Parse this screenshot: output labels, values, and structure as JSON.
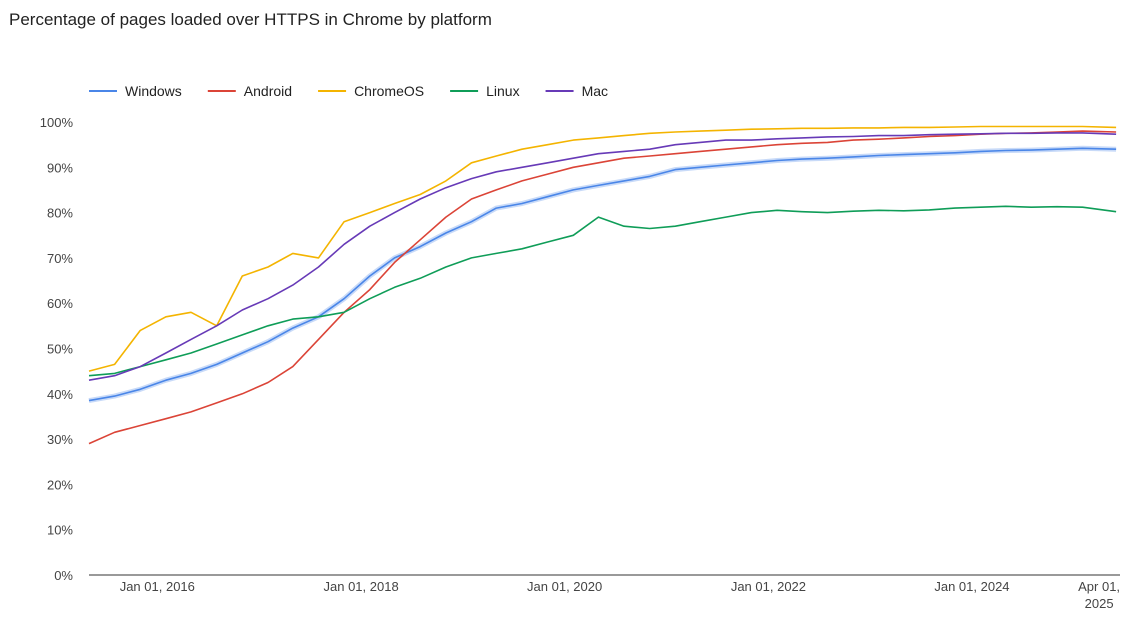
{
  "chart_data": {
    "type": "line",
    "title": "Percentage of pages loaded over HTTPS in Chrome by platform",
    "xlabel": "",
    "ylabel": "",
    "x_ticks": [
      {
        "date": "2016-01-01",
        "label": "Jan 01, 2016"
      },
      {
        "date": "2018-01-01",
        "label": "Jan 01, 2018"
      },
      {
        "date": "2020-01-01",
        "label": "Jan 01, 2020"
      },
      {
        "date": "2022-01-01",
        "label": "Jan 01, 2022"
      },
      {
        "date": "2024-01-01",
        "label": "Jan 01, 2024"
      },
      {
        "date": "2025-04-01",
        "label": "Apr 01,",
        "label2": "2025"
      }
    ],
    "xlim": [
      "2015-05-01",
      "2025-06-15"
    ],
    "ylim": [
      0,
      100
    ],
    "y_ticks": [
      {
        "value": 0,
        "label": "0%"
      },
      {
        "value": 10,
        "label": "10%"
      },
      {
        "value": 20,
        "label": "20%"
      },
      {
        "value": 30,
        "label": "30%"
      },
      {
        "value": 40,
        "label": "40%"
      },
      {
        "value": 50,
        "label": "50%"
      },
      {
        "value": 60,
        "label": "60%"
      },
      {
        "value": 70,
        "label": "70%"
      },
      {
        "value": 80,
        "label": "80%"
      },
      {
        "value": 90,
        "label": "90%"
      },
      {
        "value": 100,
        "label": "100%"
      }
    ],
    "grid": false,
    "legend_position": "top-left",
    "series": [
      {
        "name": "Windows",
        "color": "#4a86e8",
        "x": [
          "2015-05-01",
          "2015-08-01",
          "2015-11-01",
          "2016-02-01",
          "2016-05-01",
          "2016-08-01",
          "2016-11-01",
          "2017-02-01",
          "2017-05-01",
          "2017-08-01",
          "2017-11-01",
          "2018-02-01",
          "2018-05-01",
          "2018-08-01",
          "2018-11-01",
          "2019-02-01",
          "2019-05-01",
          "2019-08-01",
          "2019-11-01",
          "2020-02-01",
          "2020-05-01",
          "2020-08-01",
          "2020-11-01",
          "2021-02-01",
          "2021-05-01",
          "2021-08-01",
          "2021-11-01",
          "2022-02-01",
          "2022-05-01",
          "2022-08-01",
          "2022-11-01",
          "2023-02-01",
          "2023-05-01",
          "2023-08-01",
          "2023-11-01",
          "2024-02-01",
          "2024-05-01",
          "2024-08-01",
          "2024-11-01",
          "2025-02-01",
          "2025-06-01"
        ],
        "values": [
          38.5,
          39.5,
          41,
          43,
          44.5,
          46.5,
          49,
          51.5,
          54.5,
          57,
          61,
          66,
          70,
          72.5,
          75.5,
          78,
          81,
          82,
          83.5,
          85,
          86,
          87,
          88,
          89.5,
          90,
          90.5,
          91,
          91.5,
          91.8,
          92,
          92.3,
          92.6,
          92.8,
          93,
          93.2,
          93.5,
          93.7,
          93.8,
          94,
          94.2,
          94
        ]
      },
      {
        "name": "Android",
        "color": "#db4437",
        "x": [
          "2015-05-01",
          "2015-08-01",
          "2015-11-01",
          "2016-02-01",
          "2016-05-01",
          "2016-08-01",
          "2016-11-01",
          "2017-02-01",
          "2017-05-01",
          "2017-08-01",
          "2017-11-01",
          "2018-02-01",
          "2018-05-01",
          "2018-08-01",
          "2018-11-01",
          "2019-02-01",
          "2019-05-01",
          "2019-08-01",
          "2019-11-01",
          "2020-02-01",
          "2020-05-01",
          "2020-08-01",
          "2020-11-01",
          "2021-02-01",
          "2021-05-01",
          "2021-08-01",
          "2021-11-01",
          "2022-02-01",
          "2022-05-01",
          "2022-08-01",
          "2022-11-01",
          "2023-02-01",
          "2023-05-01",
          "2023-08-01",
          "2023-11-01",
          "2024-02-01",
          "2024-05-01",
          "2024-08-01",
          "2024-11-01",
          "2025-02-01",
          "2025-06-01"
        ],
        "values": [
          29,
          31.5,
          33,
          34.5,
          36,
          38,
          40,
          42.5,
          46,
          52,
          58,
          63,
          69,
          74,
          79,
          83,
          85,
          87,
          88.5,
          90,
          91,
          92,
          92.5,
          93,
          93.5,
          94,
          94.5,
          95,
          95.3,
          95.5,
          96,
          96.2,
          96.5,
          96.8,
          97,
          97.3,
          97.5,
          97.6,
          97.8,
          98,
          97.8
        ]
      },
      {
        "name": "ChromeOS",
        "color": "#f4b400",
        "x": [
          "2015-05-01",
          "2015-08-01",
          "2015-11-01",
          "2016-02-01",
          "2016-05-01",
          "2016-08-01",
          "2016-11-01",
          "2017-02-01",
          "2017-05-01",
          "2017-08-01",
          "2017-11-01",
          "2018-02-01",
          "2018-05-01",
          "2018-08-01",
          "2018-11-01",
          "2019-02-01",
          "2019-05-01",
          "2019-08-01",
          "2019-11-01",
          "2020-02-01",
          "2020-05-01",
          "2020-08-01",
          "2020-11-01",
          "2021-02-01",
          "2021-05-01",
          "2021-08-01",
          "2021-11-01",
          "2022-02-01",
          "2022-05-01",
          "2022-08-01",
          "2022-11-01",
          "2023-02-01",
          "2023-05-01",
          "2023-08-01",
          "2023-11-01",
          "2024-02-01",
          "2024-05-01",
          "2024-08-01",
          "2024-11-01",
          "2025-02-01",
          "2025-06-01"
        ],
        "values": [
          45,
          46.5,
          54,
          57,
          58,
          55,
          66,
          68,
          71,
          70,
          78,
          80,
          82,
          84,
          87,
          91,
          92.5,
          94,
          95,
          96,
          96.5,
          97,
          97.5,
          97.8,
          98,
          98.2,
          98.4,
          98.5,
          98.6,
          98.6,
          98.7,
          98.7,
          98.8,
          98.8,
          98.9,
          99,
          99,
          99,
          99,
          99,
          98.8
        ]
      },
      {
        "name": "Linux",
        "color": "#0f9d58",
        "x": [
          "2015-05-01",
          "2015-08-01",
          "2015-11-01",
          "2016-02-01",
          "2016-05-01",
          "2016-08-01",
          "2016-11-01",
          "2017-02-01",
          "2017-05-01",
          "2017-08-01",
          "2017-11-01",
          "2018-02-01",
          "2018-05-01",
          "2018-08-01",
          "2018-11-01",
          "2019-02-01",
          "2019-05-01",
          "2019-08-01",
          "2019-11-01",
          "2020-02-01",
          "2020-05-01",
          "2020-08-01",
          "2020-11-01",
          "2021-02-01",
          "2021-05-01",
          "2021-08-01",
          "2021-11-01",
          "2022-02-01",
          "2022-05-01",
          "2022-08-01",
          "2022-11-01",
          "2023-02-01",
          "2023-05-01",
          "2023-08-01",
          "2023-11-01",
          "2024-02-01",
          "2024-05-01",
          "2024-08-01",
          "2024-11-01",
          "2025-02-01",
          "2025-06-01"
        ],
        "values": [
          44,
          44.5,
          46,
          47.5,
          49,
          51,
          53,
          55,
          56.5,
          57,
          58,
          61,
          63.5,
          65.5,
          68,
          70,
          71,
          72,
          73.5,
          75,
          79,
          77,
          76.5,
          77,
          78,
          79,
          80,
          80.5,
          80.2,
          80,
          80.3,
          80.5,
          80.4,
          80.6,
          81,
          81.2,
          81.4,
          81.2,
          81.3,
          81.2,
          80.2
        ]
      },
      {
        "name": "Mac",
        "color": "#673ab7",
        "x": [
          "2015-05-01",
          "2015-08-01",
          "2015-11-01",
          "2016-02-01",
          "2016-05-01",
          "2016-08-01",
          "2016-11-01",
          "2017-02-01",
          "2017-05-01",
          "2017-08-01",
          "2017-11-01",
          "2018-02-01",
          "2018-05-01",
          "2018-08-01",
          "2018-11-01",
          "2019-02-01",
          "2019-05-01",
          "2019-08-01",
          "2019-11-01",
          "2020-02-01",
          "2020-05-01",
          "2020-08-01",
          "2020-11-01",
          "2021-02-01",
          "2021-05-01",
          "2021-08-01",
          "2021-11-01",
          "2022-02-01",
          "2022-05-01",
          "2022-08-01",
          "2022-11-01",
          "2023-02-01",
          "2023-05-01",
          "2023-08-01",
          "2023-11-01",
          "2024-02-01",
          "2024-05-01",
          "2024-08-01",
          "2024-11-01",
          "2025-02-01",
          "2025-06-01"
        ],
        "values": [
          43,
          44,
          46,
          49,
          52,
          55,
          58.5,
          61,
          64,
          68,
          73,
          77,
          80,
          83,
          85.5,
          87.5,
          89,
          90,
          91,
          92,
          93,
          93.5,
          94,
          95,
          95.5,
          96,
          96,
          96.3,
          96.5,
          96.7,
          96.8,
          97,
          97,
          97.2,
          97.3,
          97.4,
          97.5,
          97.5,
          97.6,
          97.6,
          97.3
        ]
      }
    ]
  }
}
